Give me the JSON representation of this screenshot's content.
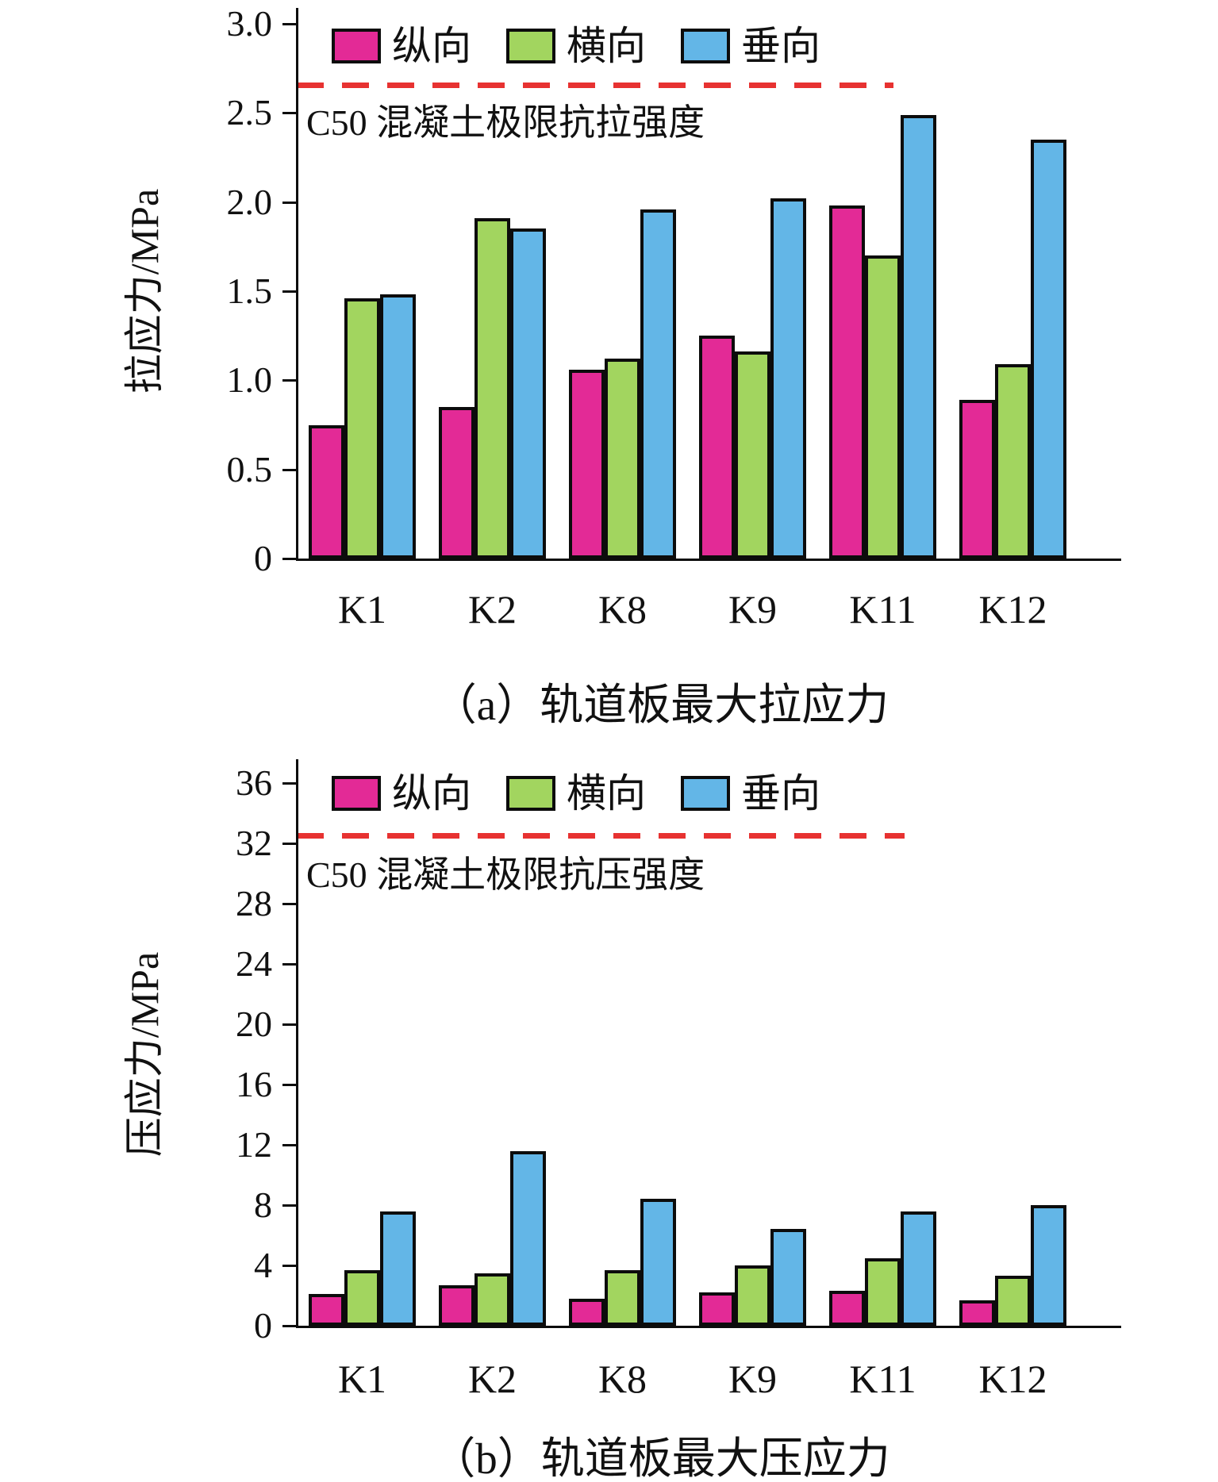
{
  "figure": {
    "background": "#ffffff",
    "axis_color": "#0c0c0c"
  },
  "chart_data": [
    {
      "type": "bar",
      "title": "（a）轨道板最大拉应力",
      "ylabel": "拉应力/MPa",
      "xlabel": "",
      "categories": [
        "K1",
        "K2",
        "K8",
        "K9",
        "K11",
        "K12"
      ],
      "series": [
        {
          "name": "纵向",
          "color": "#e32a96",
          "values": [
            0.75,
            0.85,
            1.06,
            1.25,
            1.98,
            0.89
          ]
        },
        {
          "name": "横向",
          "color": "#a2d55f",
          "values": [
            1.46,
            1.91,
            1.12,
            1.16,
            1.7,
            1.09
          ]
        },
        {
          "name": "垂向",
          "color": "#63b6e7",
          "values": [
            1.48,
            1.85,
            1.96,
            2.02,
            2.49,
            2.35
          ]
        }
      ],
      "ylim": [
        0,
        3.0
      ],
      "yticks": [
        0,
        0.5,
        1.0,
        1.5,
        2.0,
        2.5,
        3.0
      ],
      "ytick_labels": [
        "0",
        "0.5",
        "1.0",
        "1.5",
        "2.0",
        "2.5",
        "3.0"
      ],
      "grid": false,
      "legend_position": "top-inside",
      "limit_line": {
        "value": 2.64,
        "label": "C50 混凝土极限抗拉强度",
        "color": "#e73231",
        "style": "dashed"
      }
    },
    {
      "type": "bar",
      "title": "（b）轨道板最大压应力",
      "ylabel": "压应力/MPa",
      "xlabel": "",
      "categories": [
        "K1",
        "K2",
        "K8",
        "K9",
        "K11",
        "K12"
      ],
      "series": [
        {
          "name": "纵向",
          "color": "#e32a96",
          "values": [
            2.1,
            2.7,
            1.8,
            2.2,
            2.3,
            1.7
          ]
        },
        {
          "name": "横向",
          "color": "#a2d55f",
          "values": [
            3.7,
            3.5,
            3.7,
            4.0,
            4.5,
            3.3
          ]
        },
        {
          "name": "垂向",
          "color": "#63b6e7",
          "values": [
            7.6,
            11.6,
            8.4,
            6.4,
            7.6,
            8.0
          ]
        }
      ],
      "ylim": [
        0,
        36
      ],
      "yticks": [
        0,
        4,
        8,
        12,
        16,
        20,
        24,
        28,
        32,
        36
      ],
      "ytick_labels": [
        "0",
        "4",
        "8",
        "12",
        "16",
        "20",
        "24",
        "28",
        "32",
        "36"
      ],
      "grid": false,
      "legend_position": "top-inside",
      "limit_line": {
        "value": 32.4,
        "label": "C50 混凝土极限抗压强度",
        "color": "#e73231",
        "style": "dashed"
      }
    }
  ]
}
